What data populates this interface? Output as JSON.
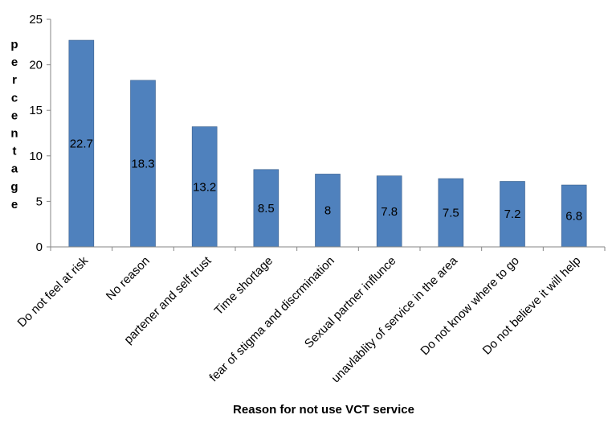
{
  "chart_data": {
    "type": "bar",
    "categories": [
      "Do not feel at risk",
      "No reason",
      "partener and self trust",
      "Time shortage",
      "fear of stigma and discrmination",
      "Sexual partner influnce",
      "unavlablity of service in the area",
      "Do not know where to go",
      "Do not believe it will help"
    ],
    "values": [
      22.7,
      18.3,
      13.2,
      8.5,
      8,
      7.8,
      7.5,
      7.2,
      6.8
    ],
    "value_labels": [
      "22.7",
      "18.3",
      "13.2",
      "8.5",
      "8",
      "7.8",
      "7.5",
      "7.2",
      "6.8"
    ],
    "xlabel": "Reason for not use VCT service",
    "ylabel": "percentage",
    "ylim": [
      0,
      25
    ],
    "yticks": [
      "0",
      "5",
      "10",
      "15",
      "20",
      "25"
    ],
    "grid": false,
    "bar_color": "#4f81bd",
    "bar_edge_color": "#385d8a",
    "axis_color": "#868686"
  }
}
